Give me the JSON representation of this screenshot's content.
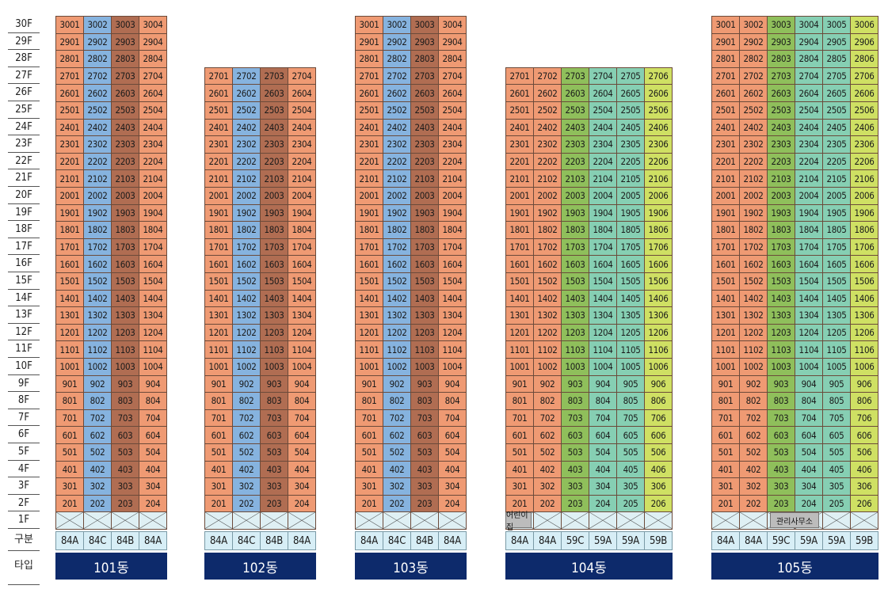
{
  "floor_labels": [
    "30F",
    "29F",
    "28F",
    "27F",
    "26F",
    "25F",
    "24F",
    "23F",
    "22F",
    "21F",
    "20F",
    "19F",
    "18F",
    "17F",
    "16F",
    "15F",
    "14F",
    "13F",
    "12F",
    "11F",
    "10F",
    "9F",
    "8F",
    "7F",
    "6F",
    "5F",
    "4F",
    "3F",
    "2F",
    "1F",
    "구분",
    "타입"
  ],
  "legend_colors": {
    "orange": "#ef9a73",
    "blue": "#86b3df",
    "brown": "#b06d52",
    "green": "#8fbf5b",
    "teal": "#86cfb3",
    "yellow": "#cfe063",
    "nameplate": "#0d2a6b"
  },
  "buildings": [
    {
      "name": "101동",
      "floors": 30,
      "units": 4,
      "colors": [
        "orange",
        "blue",
        "brown",
        "orange"
      ],
      "types": [
        "84A",
        "84C",
        "84B",
        "84A"
      ],
      "ground_label": null,
      "ground_span": [
        0,
        0
      ]
    },
    {
      "name": "102동",
      "floors": 27,
      "units": 4,
      "colors": [
        "orange",
        "blue",
        "brown",
        "orange"
      ],
      "types": [
        "84A",
        "84C",
        "84B",
        "84A"
      ],
      "ground_label": null,
      "ground_span": [
        0,
        0
      ]
    },
    {
      "name": "103동",
      "floors": 30,
      "units": 4,
      "colors": [
        "orange",
        "blue",
        "brown",
        "orange"
      ],
      "types": [
        "84A",
        "84C",
        "84B",
        "84A"
      ],
      "ground_label": null,
      "ground_span": [
        0,
        0
      ]
    },
    {
      "name": "104동",
      "floors": 27,
      "units": 6,
      "colors": [
        "orange",
        "orange",
        "green",
        "teal",
        "teal",
        "yellow"
      ],
      "types": [
        "84A",
        "84A",
        "59C",
        "59A",
        "59A",
        "59B"
      ],
      "ground_label": "어린이집",
      "ground_span": [
        0,
        1
      ]
    },
    {
      "name": "105동",
      "floors": 30,
      "units": 6,
      "colors": [
        "orange",
        "orange",
        "green",
        "teal",
        "teal",
        "yellow"
      ],
      "types": [
        "84A",
        "84A",
        "59C",
        "59A",
        "59A",
        "59B"
      ],
      "ground_label": "관리사무소",
      "ground_span": [
        2,
        3
      ]
    }
  ]
}
